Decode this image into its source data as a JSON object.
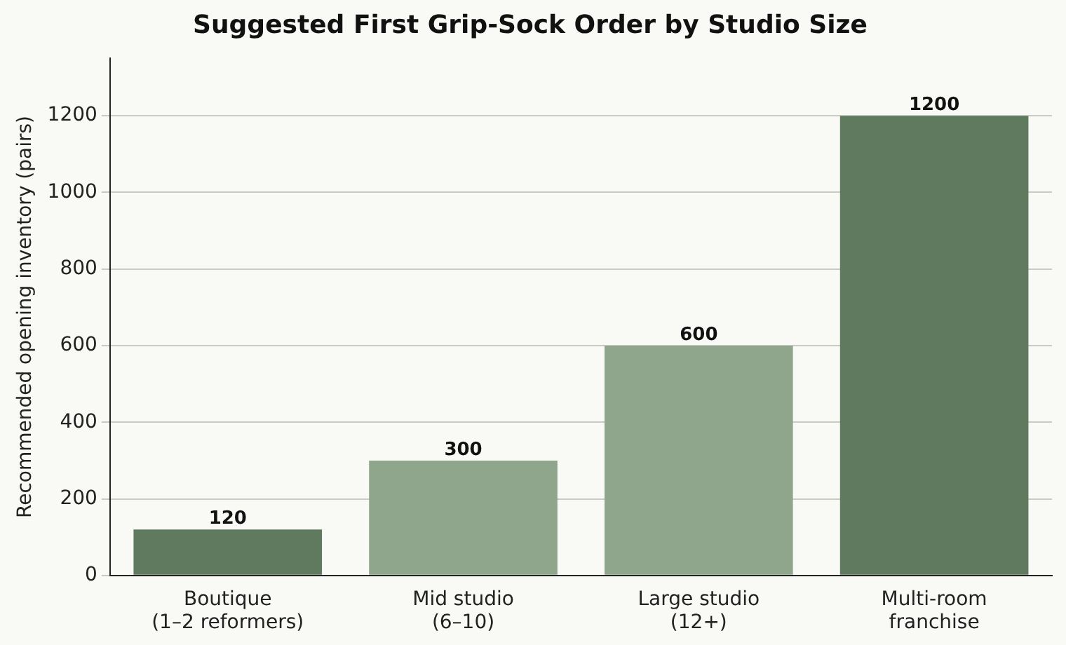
{
  "chart_data": {
    "type": "bar",
    "title": "Suggested First Grip-Sock Order by Studio Size",
    "ylabel": "Recommended opening inventory (pairs)",
    "categories": [
      "Boutique\n(1–2 reformers)",
      "Mid studio\n(6–10)",
      "Large studio\n(12+)",
      "Multi-room\nfranchise"
    ],
    "values": [
      120,
      300,
      600,
      1200
    ],
    "colors": [
      "#5f7a5f",
      "#8fa68c",
      "#8fa68c",
      "#5f7a5f"
    ],
    "ylim": [
      0,
      1350
    ],
    "yticks": [
      0,
      200,
      400,
      600,
      800,
      1000,
      1200
    ],
    "grid": "y",
    "data_labels": true
  }
}
